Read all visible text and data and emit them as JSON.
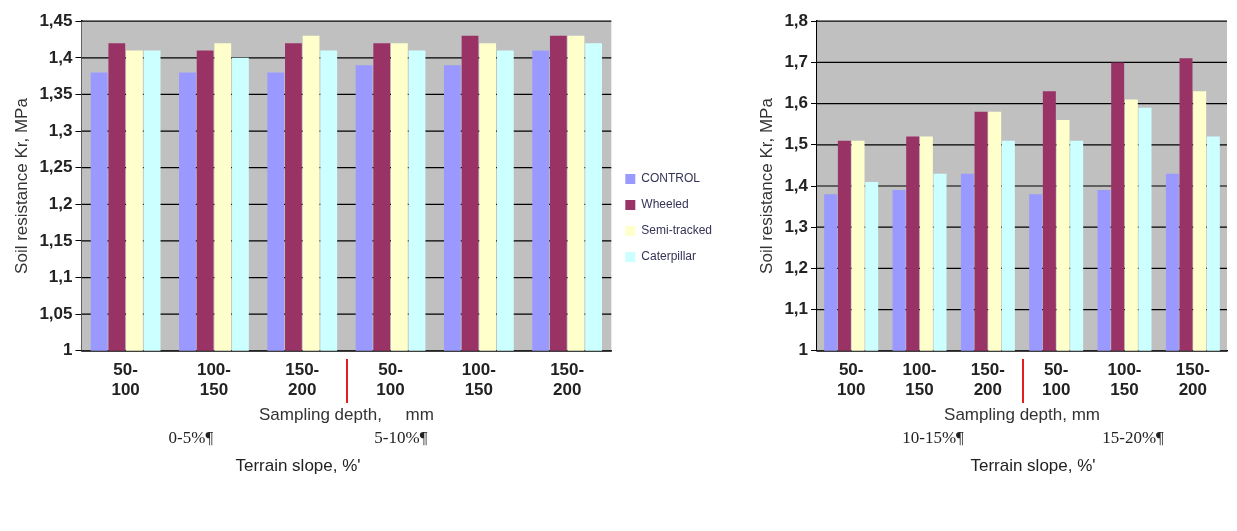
{
  "chart_data": [
    {
      "type": "bar",
      "ylabel": "Soil resistance Kr, MPa",
      "xlabel": "Sampling depth,     mm",
      "categories": [
        "50- 100",
        "100- 150",
        "150- 200",
        "50- 100",
        "100- 150",
        "150- 200"
      ],
      "series": [
        {
          "name": "CONTROL",
          "color": "#9999ff",
          "values": [
            1.38,
            1.38,
            1.38,
            1.39,
            1.39,
            1.41
          ]
        },
        {
          "name": "Wheeled",
          "color": "#993366",
          "values": [
            1.42,
            1.41,
            1.42,
            1.42,
            1.43,
            1.43
          ]
        },
        {
          "name": "Semi-tracked",
          "color": "#ffffcc",
          "values": [
            1.41,
            1.42,
            1.43,
            1.42,
            1.42,
            1.43
          ]
        },
        {
          "name": "Caterpillar",
          "color": "#ccffff",
          "values": [
            1.41,
            1.4,
            1.41,
            1.41,
            1.41,
            1.42
          ]
        }
      ],
      "ylim": [
        1,
        1.45
      ],
      "yticks": [
        1,
        {
          "value": 1.05,
          "label": "1,05"
        },
        {
          "value": 1.1,
          "label": "1,1"
        },
        {
          "value": 1.15,
          "label": "1,15"
        },
        {
          "value": 1.2,
          "label": "1,2"
        },
        {
          "value": 1.25,
          "label": "1,25"
        },
        {
          "value": 1.3,
          "label": "1,3"
        },
        {
          "value": 1.35,
          "label": "1,35"
        },
        {
          "value": 1.4,
          "label": "1,4"
        },
        {
          "value": 1.45,
          "label": "1,45"
        }
      ],
      "grid": "y",
      "legend": "right",
      "annotations": [
        "0-5%¶",
        "5-10%¶",
        "Terrain slope, %'"
      ]
    },
    {
      "type": "bar",
      "ylabel": "Soil resistance Kr, MPa",
      "xlabel": "Sampling depth, mm",
      "categories": [
        "50- 100",
        "100- 150",
        "150- 200",
        "50- 100",
        "100- 150",
        "150- 200"
      ],
      "series": [
        {
          "color": "#9999ff",
          "values": [
            1.38,
            1.39,
            1.43,
            1.38,
            1.39,
            1.43
          ]
        },
        {
          "color": "#993366",
          "values": [
            1.51,
            1.52,
            1.58,
            1.63,
            1.7,
            1.71
          ]
        },
        {
          "color": "#ffffcc",
          "values": [
            1.51,
            1.52,
            1.58,
            1.56,
            1.61,
            1.63
          ]
        },
        {
          "color": "#ccffff",
          "values": [
            1.41,
            1.43,
            1.51,
            1.51,
            1.59,
            1.52
          ]
        }
      ],
      "ylim": [
        1,
        1.8
      ],
      "yticks": [
        1,
        {
          "value": 1.1,
          "label": "1,1"
        },
        {
          "value": 1.2,
          "label": "1,2"
        },
        {
          "value": 1.3,
          "label": "1,3"
        },
        {
          "value": 1.4,
          "label": "1,4"
        },
        {
          "value": 1.5,
          "label": "1,5"
        },
        {
          "value": 1.6,
          "label": "1,6"
        },
        {
          "value": 1.7,
          "label": "1,7"
        },
        {
          "value": 1.8,
          "label": "1,8"
        }
      ],
      "grid": "y",
      "legend": false,
      "annotations": [
        "10-15%¶",
        "15-20%¶",
        "Terrain slope, %'"
      ]
    }
  ]
}
